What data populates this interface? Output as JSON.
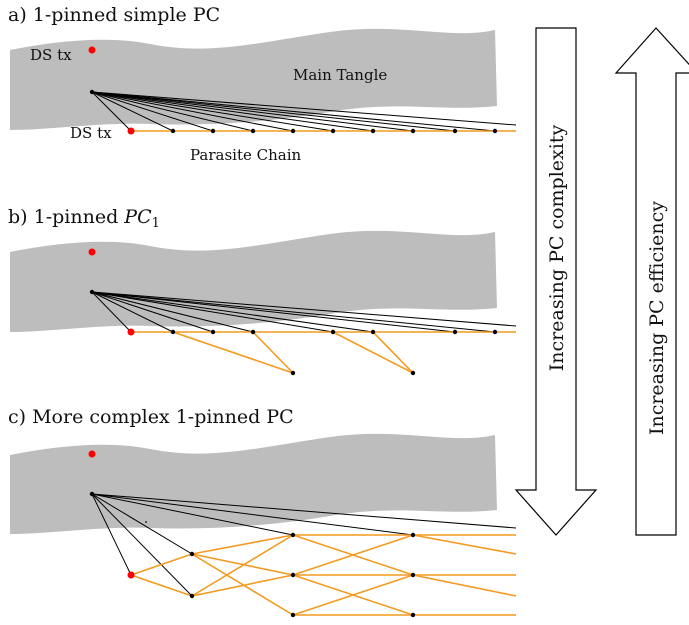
{
  "panels": {
    "a": {
      "title": "a) 1-pinned simple PC",
      "ds_tx_top": "DS tx",
      "ds_tx_bottom": "DS tx",
      "main_tangle": "Main Tangle",
      "parasite_chain": "Parasite Chain"
    },
    "b": {
      "title_prefix": "b) 1-pinned ",
      "title_math": "PC",
      "title_sub": "1"
    },
    "c": {
      "title": "c) More complex 1-pinned PC"
    }
  },
  "arrows": {
    "down": "Increasing PC complexity",
    "up": "Increasing PC efficiency"
  },
  "colors": {
    "tangle": "#bdbdbd",
    "parasite": "#f39a1f",
    "double_spend": "#ff0000"
  }
}
